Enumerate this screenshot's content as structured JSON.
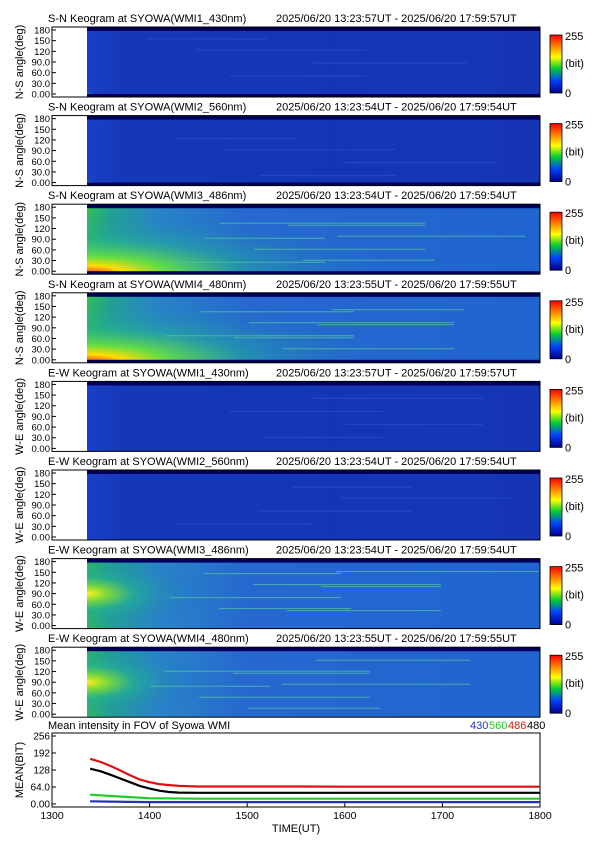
{
  "keogram_panels": [
    {
      "title": "S-N Keogram at SYOWA(WMI1_430nm)",
      "time_range": "2025/06/20 13:23:57UT - 2025/06/20 17:59:57UT",
      "ylabel": "N-S angle(deg)",
      "brightness": "faint"
    },
    {
      "title": "S-N Keogram at SYOWA(WMI2_560nm)",
      "time_range": "2025/06/20 13:23:54UT - 2025/06/20 17:59:54UT",
      "ylabel": "N-S angle(deg)",
      "brightness": "faint"
    },
    {
      "title": "S-N Keogram at SYOWA(WMI3_486nm)",
      "time_range": "2025/06/20 13:23:54UT - 2025/06/20 17:59:54UT",
      "ylabel": "N-S angle(deg)",
      "brightness": "bright"
    },
    {
      "title": "S-N Keogram at SYOWA(WMI4_480nm)",
      "time_range": "2025/06/20 13:23:55UT - 2025/06/20 17:59:55UT",
      "ylabel": "N-S angle(deg)",
      "brightness": "bright"
    },
    {
      "title": "E-W Keogram at SYOWA(WMI1_430nm)",
      "time_range": "2025/06/20 13:23:57UT - 2025/06/20 17:59:57UT",
      "ylabel": "W-E angle(deg)",
      "brightness": "faint"
    },
    {
      "title": "E-W Keogram at SYOWA(WMI2_560nm)",
      "time_range": "2025/06/20 13:23:54UT - 2025/06/20 17:59:54UT",
      "ylabel": "W-E angle(deg)",
      "brightness": "faint"
    },
    {
      "title": "E-W Keogram at SYOWA(WMI3_486nm)",
      "time_range": "2025/06/20 13:23:54UT - 2025/06/20 17:59:54UT",
      "ylabel": "W-E angle(deg)",
      "brightness": "bright"
    },
    {
      "title": "E-W Keogram at SYOWA(WMI4_480nm)",
      "time_range": "2025/06/20 13:23:55UT - 2025/06/20 17:59:55UT",
      "ylabel": "W-E angle(deg)",
      "brightness": "medium"
    }
  ],
  "keogram_axis": {
    "yticks": [
      "180",
      "150",
      "120",
      "90.0",
      "60.0",
      "30.0",
      "0.00"
    ],
    "colorbar_max": "255",
    "colorbar_unit": "(bit)",
    "colorbar_min": "0"
  },
  "chart_data": {
    "type": "line",
    "title": "Mean intensity in FOV of Syowa WMI",
    "xlabel": "TIME(UT)",
    "ylabel": "MEAN(BIT)",
    "xlim": [
      1300,
      1800
    ],
    "ylim": [
      0,
      256
    ],
    "xticks": [
      "1300",
      "1400",
      "1500",
      "1600",
      "1700",
      "1800"
    ],
    "yticks": [
      "256",
      "192",
      "128",
      "64.0",
      "0.00"
    ],
    "legend_position": "top-right",
    "series": [
      {
        "name": "430",
        "color": "#2233bb",
        "x": [
          1339,
          1360,
          1380,
          1400,
          1450,
          1500,
          1550,
          1600,
          1650,
          1700,
          1750,
          1800
        ],
        "y": [
          10,
          9,
          8,
          7,
          7,
          7,
          7,
          7,
          7,
          7,
          7,
          7
        ]
      },
      {
        "name": "560",
        "color": "#22cc22",
        "x": [
          1339,
          1360,
          1380,
          1400,
          1450,
          1500,
          1550,
          1600,
          1650,
          1700,
          1750,
          1800
        ],
        "y": [
          35,
          30,
          26,
          22,
          20,
          20,
          20,
          20,
          20,
          20,
          20,
          20
        ]
      },
      {
        "name": "486",
        "color": "#dd1111",
        "x": [
          1339,
          1350,
          1360,
          1370,
          1380,
          1390,
          1400,
          1410,
          1420,
          1430,
          1450,
          1500,
          1550,
          1600,
          1650,
          1700,
          1750,
          1800
        ],
        "y": [
          170,
          158,
          143,
          126,
          108,
          92,
          82,
          75,
          71,
          68,
          66,
          66,
          66,
          65,
          65,
          65,
          65,
          65
        ]
      },
      {
        "name": "480",
        "color": "#000000",
        "x": [
          1339,
          1350,
          1360,
          1370,
          1380,
          1390,
          1400,
          1410,
          1420,
          1430,
          1450,
          1500,
          1550,
          1600,
          1650,
          1700,
          1750,
          1800
        ],
        "y": [
          133,
          123,
          110,
          96,
          82,
          68,
          58,
          50,
          45,
          43,
          42,
          42,
          42,
          42,
          42,
          42,
          42,
          42
        ]
      }
    ]
  }
}
